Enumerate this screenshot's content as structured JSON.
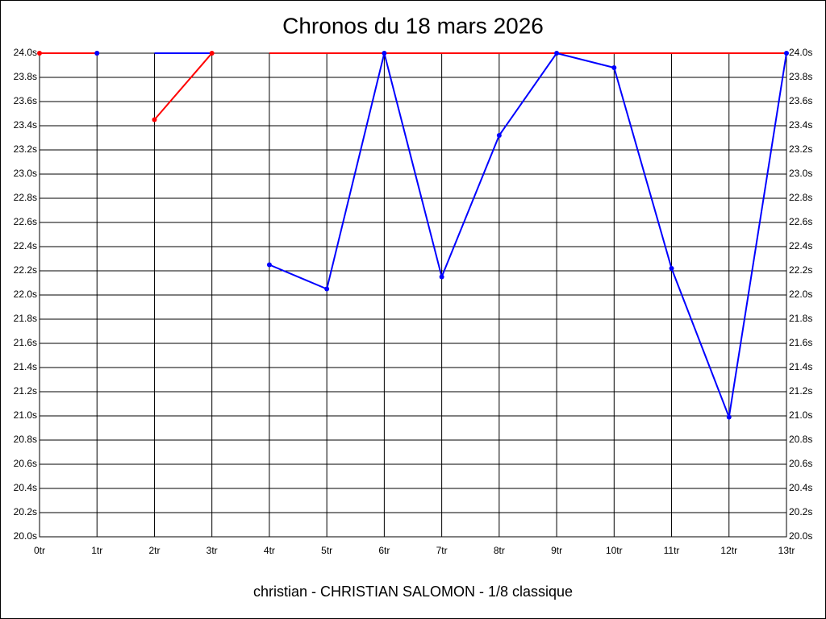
{
  "chart_data": {
    "type": "line",
    "title": "Chronos du 18 mars 2026",
    "footer": "christian - CHRISTIAN SALOMON - 1/8 classique",
    "categories": [
      "0tr",
      "1tr",
      "2tr",
      "3tr",
      "4tr",
      "5tr",
      "6tr",
      "7tr",
      "8tr",
      "9tr",
      "10tr",
      "11tr",
      "12tr",
      "13tr"
    ],
    "ylim": [
      20,
      24
    ],
    "yticks": [
      {
        "value": 20,
        "label": "20.0s"
      },
      {
        "value": 20.2,
        "label": "20.2s"
      },
      {
        "value": 20.4,
        "label": "20.4s"
      },
      {
        "value": 20.6,
        "label": "20.6s"
      },
      {
        "value": 20.8,
        "label": "20.8s"
      },
      {
        "value": 21,
        "label": "21.0s"
      },
      {
        "value": 21.2,
        "label": "21.2s"
      },
      {
        "value": 21.4,
        "label": "21.4s"
      },
      {
        "value": 21.6,
        "label": "21.6s"
      },
      {
        "value": 21.8,
        "label": "21.8s"
      },
      {
        "value": 22,
        "label": "22.0s"
      },
      {
        "value": 22.2,
        "label": "22.2s"
      },
      {
        "value": 22.4,
        "label": "22.4s"
      },
      {
        "value": 22.6,
        "label": "22.6s"
      },
      {
        "value": 22.8,
        "label": "22.8s"
      },
      {
        "value": 23,
        "label": "23.0s"
      },
      {
        "value": 23.2,
        "label": "23.2s"
      },
      {
        "value": 23.4,
        "label": "23.4s"
      },
      {
        "value": 23.6,
        "label": "23.6s"
      },
      {
        "value": 23.8,
        "label": "23.8s"
      },
      {
        "value": 24,
        "label": "24.0s"
      }
    ],
    "grid": true,
    "series": [
      {
        "color": "#0000ff",
        "markers": false,
        "values": [
          null,
          null,
          24.0,
          24.0,
          null,
          null,
          null,
          null,
          null,
          null,
          null,
          null,
          null,
          null
        ]
      },
      {
        "color": "#ff0000",
        "markers": true,
        "values": [
          24.0,
          24.0,
          null,
          null,
          null,
          null,
          null,
          null,
          null,
          null,
          null,
          null,
          null,
          null
        ]
      },
      {
        "color": "#ff0000",
        "markers": true,
        "values": [
          null,
          null,
          23.45,
          24.0,
          null,
          null,
          null,
          null,
          null,
          null,
          null,
          null,
          null,
          null
        ]
      },
      {
        "color": "#ff0000",
        "markers": false,
        "values": [
          null,
          null,
          null,
          null,
          24.0,
          24.0,
          24.0,
          24.0,
          24.0,
          24.0,
          24.0,
          24.0,
          24.0,
          24.0
        ]
      },
      {
        "color": "#0000ff",
        "markers": true,
        "values": [
          null,
          24.0,
          null,
          null,
          null,
          null,
          null,
          null,
          null,
          null,
          null,
          null,
          null,
          null
        ]
      },
      {
        "color": "#0000ff",
        "markers": true,
        "values": [
          null,
          null,
          null,
          null,
          22.25,
          22.05,
          24.0,
          22.15,
          23.32,
          24.0,
          23.88,
          22.22,
          20.99,
          24.0
        ]
      }
    ]
  }
}
